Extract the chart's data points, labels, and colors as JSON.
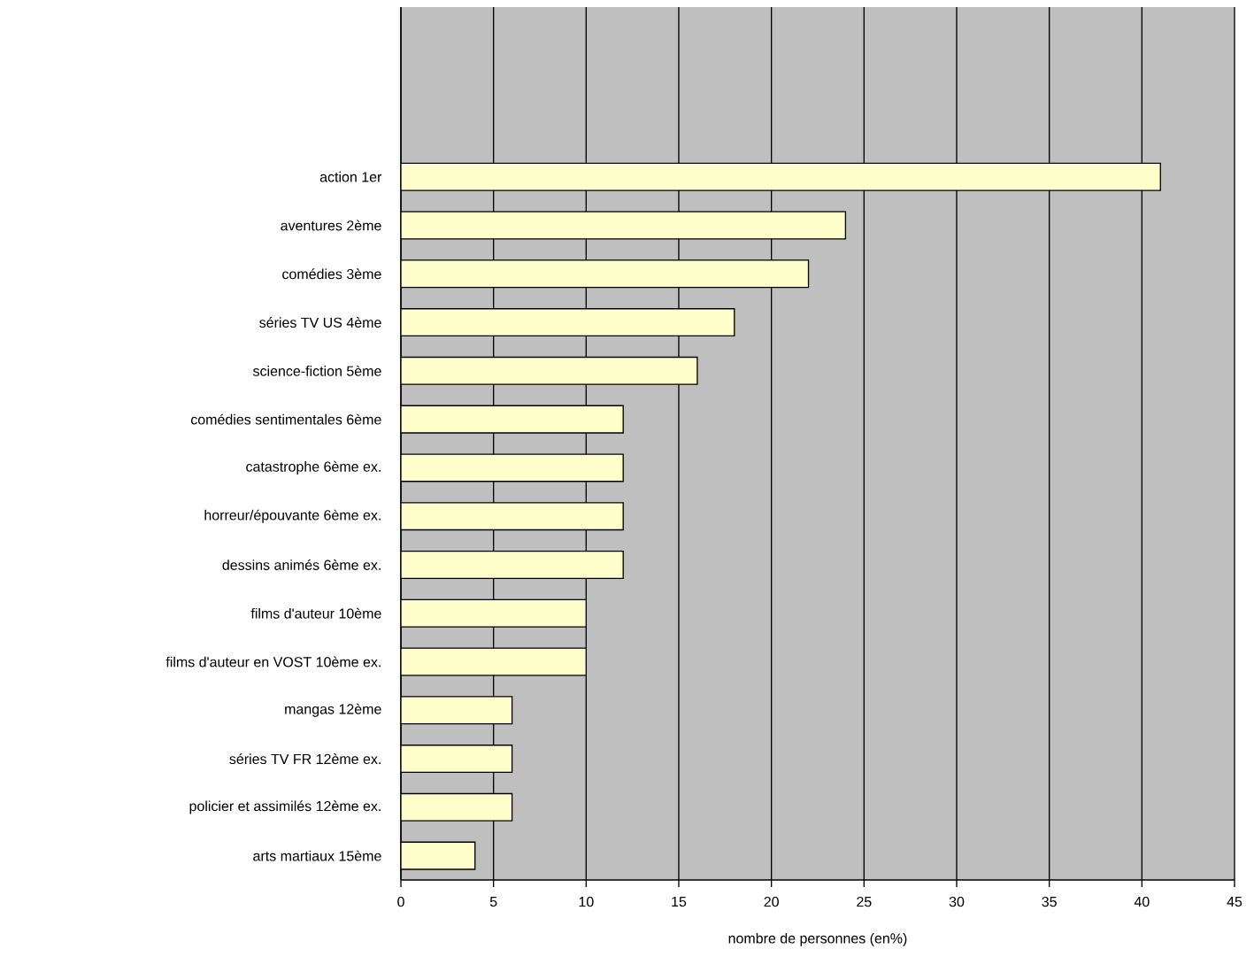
{
  "chart_data": {
    "type": "bar",
    "orientation": "horizontal",
    "xlabel": "nombre de personnes (en%)",
    "categories": [
      null,
      null,
      null,
      "action 1er",
      "aventures 2ème",
      "comédies 3ème",
      "séries TV US 4ème",
      "science-fiction 5ème",
      "comédies sentimentales 6ème",
      "catastrophe 6ème ex.",
      "horreur/épouvante 6ème ex.",
      "dessins animés 6ème ex.",
      "films d'auteur 10ème",
      "films d'auteur en VOST 10ème ex.",
      "mangas 12ème",
      "séries TV FR 12ème ex.",
      "policier et assimilés 12ème ex.",
      "arts martiaux 15ème"
    ],
    "values": [
      null,
      null,
      null,
      41,
      24,
      22,
      18,
      16,
      12,
      12,
      12,
      12,
      10,
      10,
      6,
      6,
      6,
      4
    ],
    "color": "#ffffcc",
    "xlim": [
      0,
      45
    ],
    "xticks": [
      0,
      5,
      10,
      15,
      20,
      25,
      30,
      35,
      40,
      45
    ],
    "grid": "x"
  }
}
